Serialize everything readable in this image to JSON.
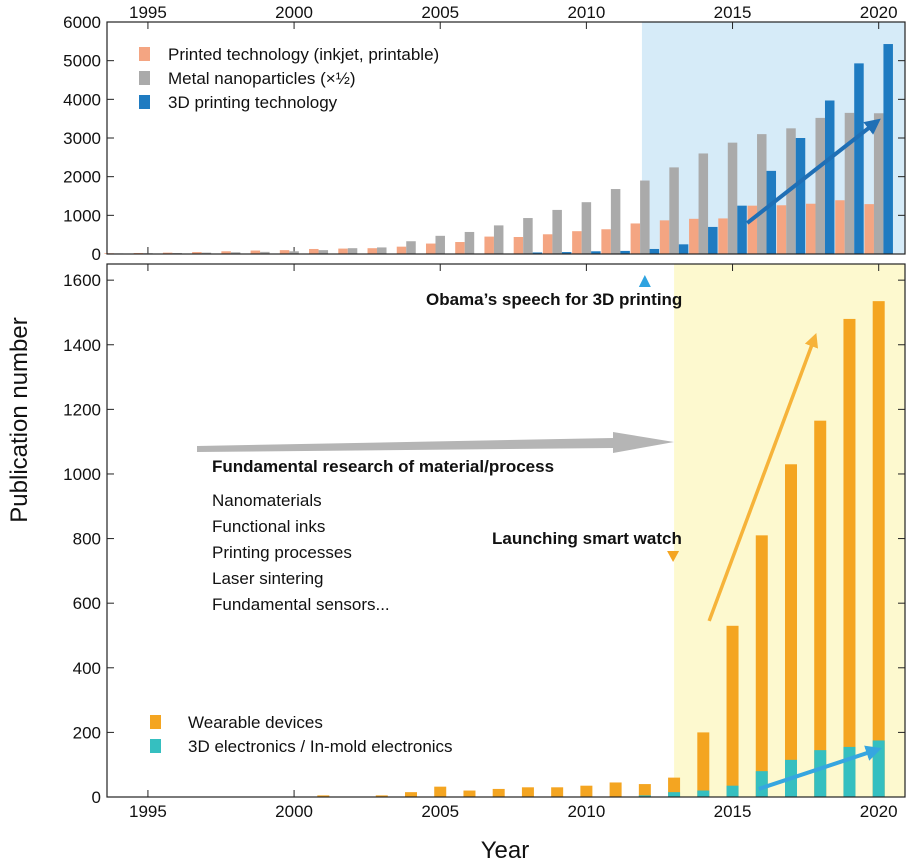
{
  "axis": {
    "xlabel": "Year",
    "ylabel": "Publication number"
  },
  "colors": {
    "printed": "#f4a582",
    "metal": "#aaaaaa",
    "printing3d": "#1f7bc1",
    "wearable": "#f4a521",
    "electronics3d": "#35bfc0",
    "top_highlight": "#d6ebf8",
    "bottom_highlight": "#fdf9cf",
    "arrow_gray": "#b5b5b5",
    "arrow_orange": "#f6b33a",
    "arrow_cyan": "#36a6e0",
    "arrow_blue": "#1f6fb5",
    "marker_blue": "#2ea3e0",
    "marker_orange": "#f4a521"
  },
  "chart_data": [
    {
      "type": "bar",
      "panel": "top",
      "x": [
        1994,
        1995,
        1996,
        1997,
        1998,
        1999,
        2000,
        2001,
        2002,
        2003,
        2004,
        2005,
        2006,
        2007,
        2008,
        2009,
        2010,
        2011,
        2012,
        2013,
        2014,
        2015,
        2016,
        2017,
        2018,
        2019,
        2020
      ],
      "xlim": [
        1993.6,
        2020.9
      ],
      "ylim": [
        0,
        6000
      ],
      "yticks": [
        0,
        1000,
        2000,
        3000,
        4000,
        5000,
        6000
      ],
      "xticks": [
        1995,
        2000,
        2005,
        2010,
        2015,
        2020
      ],
      "highlight_from_year": 2012,
      "legend_position": "top-left",
      "series": [
        {
          "name": "Printed technology (inkjet, printable)",
          "color_key": "printed",
          "values": [
            20,
            25,
            35,
            50,
            70,
            90,
            100,
            130,
            140,
            150,
            190,
            270,
            310,
            450,
            440,
            510,
            590,
            640,
            790,
            870,
            910,
            920,
            1250,
            1260,
            1300,
            1390,
            1290
          ]
        },
        {
          "name": "Metal nanoparticles (×½)",
          "color_key": "metal",
          "values": [
            15,
            20,
            25,
            35,
            45,
            55,
            70,
            100,
            150,
            170,
            330,
            470,
            570,
            740,
            930,
            1140,
            1340,
            1680,
            1900,
            2240,
            2600,
            2880,
            3100,
            3250,
            3520,
            3650,
            3640
          ]
        },
        {
          "name": "3D printing technology",
          "color_key": "printing3d",
          "values": [
            0,
            0,
            0,
            0,
            0,
            0,
            0,
            0,
            0,
            0,
            0,
            0,
            0,
            0,
            40,
            50,
            70,
            80,
            130,
            250,
            700,
            1250,
            2150,
            3000,
            3970,
            4930,
            5430
          ]
        }
      ]
    },
    {
      "type": "bar",
      "panel": "bottom",
      "stacked": true,
      "x": [
        1994,
        1995,
        1996,
        1997,
        1998,
        1999,
        2000,
        2001,
        2002,
        2003,
        2004,
        2005,
        2006,
        2007,
        2008,
        2009,
        2010,
        2011,
        2012,
        2013,
        2014,
        2015,
        2016,
        2017,
        2018,
        2019,
        2020
      ],
      "xlim": [
        1993.6,
        2020.9
      ],
      "ylim": [
        0,
        1650
      ],
      "yticks": [
        0,
        200,
        400,
        600,
        800,
        1000,
        1200,
        1400,
        1600
      ],
      "xticks": [
        1995,
        2000,
        2005,
        2010,
        2015,
        2020
      ],
      "highlight_from_year": 2013,
      "legend_position": "bottom-left",
      "series": [
        {
          "name": "Wearable devices",
          "color_key": "wearable",
          "values": [
            0,
            0,
            0,
            0,
            0,
            0,
            0,
            5,
            0,
            5,
            15,
            32,
            20,
            25,
            30,
            30,
            35,
            45,
            40,
            60,
            200,
            530,
            810,
            1030,
            1165,
            1480,
            1535
          ]
        },
        {
          "name": "3D electronics / In-mold electronics",
          "color_key": "electronics3d",
          "values": [
            0,
            0,
            0,
            0,
            0,
            0,
            0,
            0,
            0,
            0,
            0,
            0,
            0,
            0,
            0,
            0,
            0,
            0,
            5,
            15,
            20,
            35,
            80,
            115,
            145,
            155,
            175
          ]
        }
      ]
    }
  ],
  "annotations": {
    "obama": "Obama’s speech for 3D printing",
    "smartwatch": "Launching smart watch",
    "fundamental_title": "Fundamental research of material/process",
    "fundamental_items": [
      "Nanomaterials",
      "Functional inks",
      "Printing processes",
      "Laser sintering",
      "Fundamental sensors..."
    ]
  }
}
